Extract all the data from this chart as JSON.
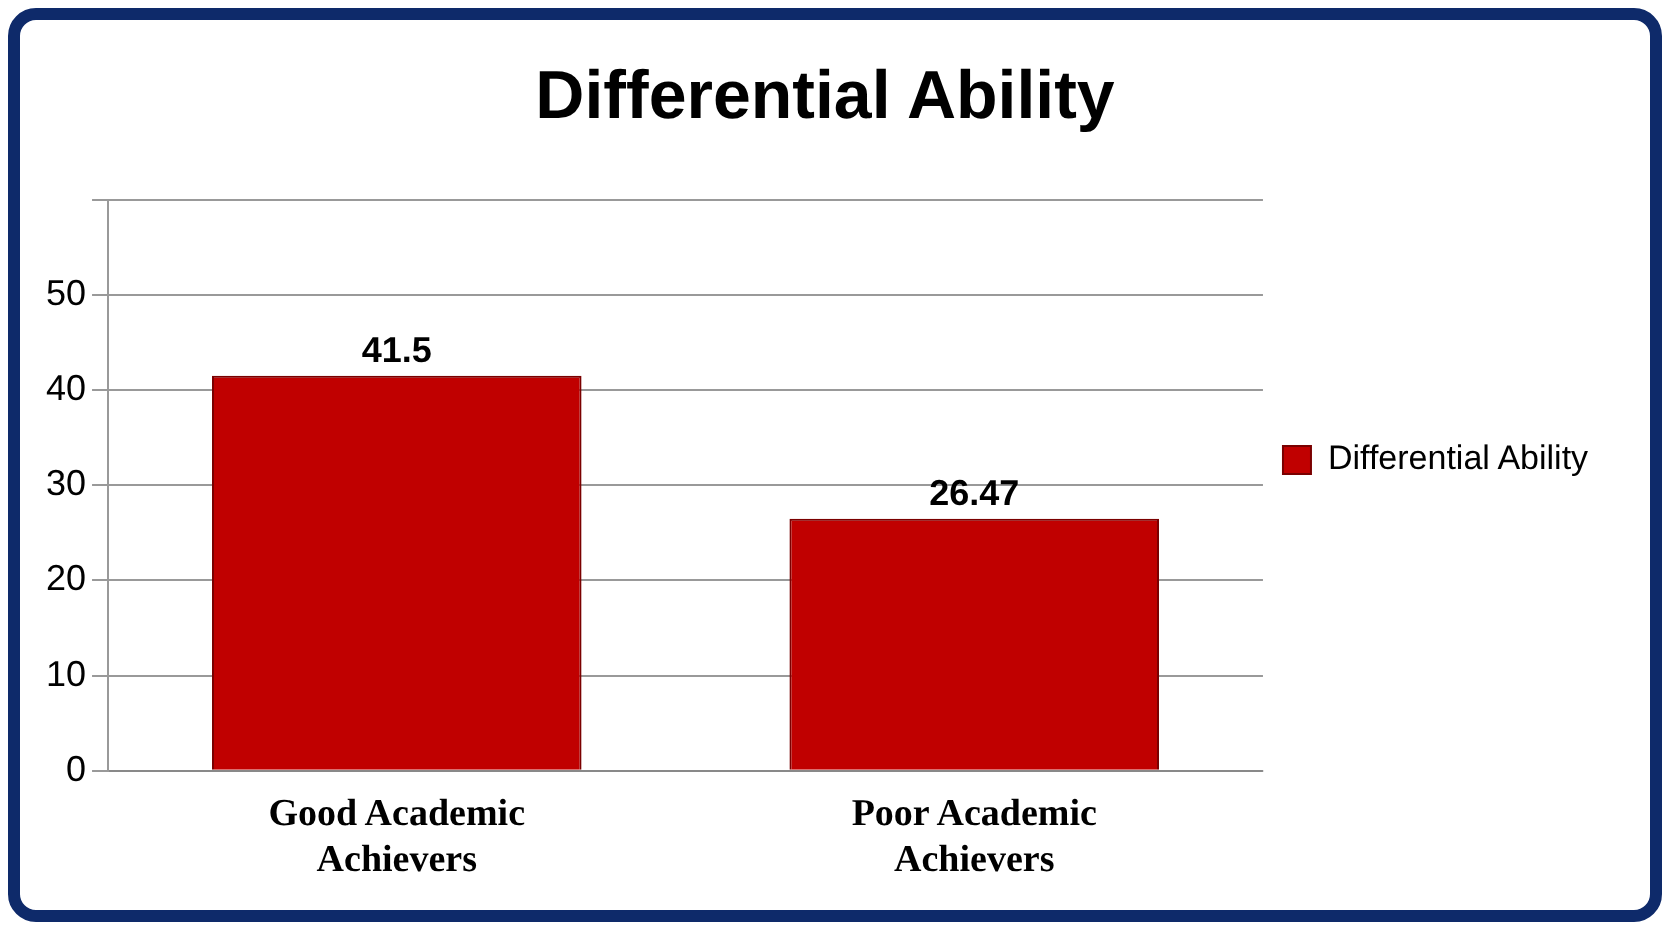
{
  "chart_data": {
    "type": "bar",
    "title": "Differential Ability",
    "categories": [
      "Good Academic Achievers",
      "Poor Academic Achievers"
    ],
    "series": [
      {
        "name": "Differential Ability",
        "color": "#c00000",
        "values": [
          41.5,
          26.47
        ]
      }
    ],
    "ylim": [
      0,
      60
    ],
    "yticks": [
      0,
      10,
      20,
      30,
      40,
      50,
      {
        "value": 60,
        "label": null
      }
    ],
    "grid": "y",
    "legend": "right",
    "data_labels": true
  }
}
